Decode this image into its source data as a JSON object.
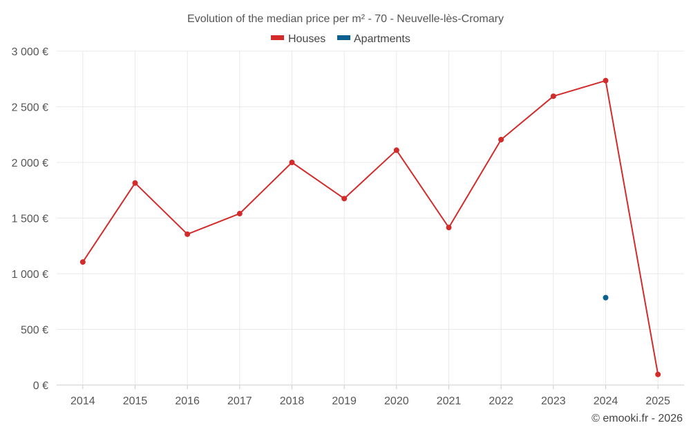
{
  "chart_data": {
    "type": "line",
    "title": "Evolution of the median price per m² - 70 - Neuvelle-lès-Cromary",
    "categories": [
      "2014",
      "2015",
      "2016",
      "2017",
      "2018",
      "2019",
      "2020",
      "2021",
      "2022",
      "2023",
      "2024",
      "2025"
    ],
    "ylim": [
      0,
      3000
    ],
    "yticks": [
      0,
      500,
      1000,
      1500,
      2000,
      2500,
      3000
    ],
    "ytick_labels": [
      "0 €",
      "500 €",
      "1 000 €",
      "1 500 €",
      "2 000 €",
      "2 500 €",
      "3 000 €"
    ],
    "grid": true,
    "legend_position": "top-center",
    "series": [
      {
        "name": "Houses",
        "color": "#d32a2a",
        "values": [
          1105,
          1815,
          1355,
          1540,
          2000,
          1675,
          2110,
          1415,
          2205,
          2595,
          2735,
          95
        ]
      },
      {
        "name": "Apartments",
        "color": "#0b5f91",
        "values": [
          null,
          null,
          null,
          null,
          null,
          null,
          null,
          null,
          null,
          null,
          785,
          null
        ]
      }
    ]
  },
  "credit": "© emooki.fr - 2026"
}
